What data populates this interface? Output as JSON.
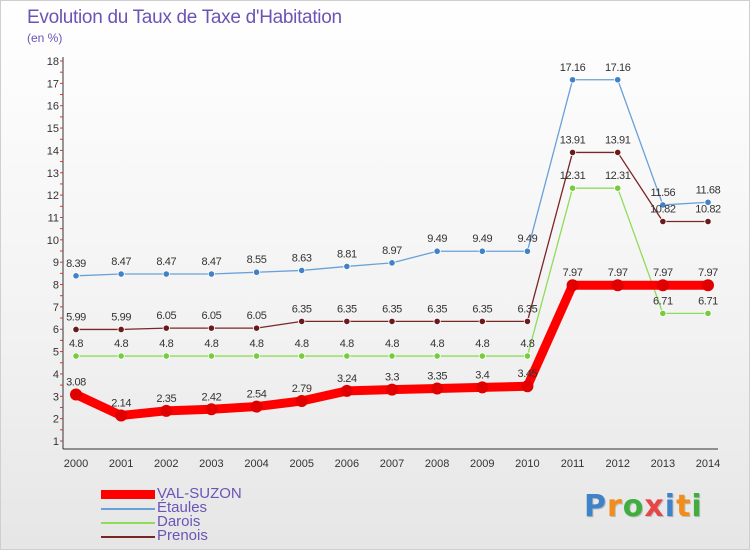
{
  "header": {
    "title": "Evolution du Taux de Taxe d'Habitation",
    "unit": "(en %)"
  },
  "chart_data": {
    "type": "line",
    "title": "Evolution du Taux de Taxe d'Habitation",
    "subtitle": "(en %)",
    "xlabel": "",
    "ylabel": "",
    "categories": [
      "2000",
      "2001",
      "2002",
      "2003",
      "2004",
      "2005",
      "2006",
      "2007",
      "2008",
      "2009",
      "2010",
      "2011",
      "2012",
      "2013",
      "2014"
    ],
    "ylim": [
      1,
      18
    ],
    "yticks": [
      1,
      2,
      3,
      4,
      5,
      6,
      7,
      8,
      9,
      10,
      11,
      12,
      13,
      14,
      15,
      16,
      17,
      18
    ],
    "grid": false,
    "legend_position": "bottom-left",
    "series": [
      {
        "name": "Étaules",
        "color": "#6aa0d8",
        "point_color": "#3f82c8",
        "values": [
          8.39,
          8.47,
          8.47,
          8.47,
          8.55,
          8.63,
          8.81,
          8.97,
          9.49,
          9.49,
          9.49,
          17.16,
          17.16,
          11.56,
          11.68
        ],
        "labels": [
          "8.39",
          "8.47",
          "8.47",
          "8.47",
          "8.55",
          "8.63",
          "8.81",
          "8.97",
          "9.49",
          "9.49",
          "9.49",
          "17.16",
          "17.16",
          "11.56",
          "11.68"
        ]
      },
      {
        "name": "Prenois",
        "color": "#7a2626",
        "point_color": "#6a1a1a",
        "values": [
          5.99,
          5.99,
          6.05,
          6.05,
          6.05,
          6.35,
          6.35,
          6.35,
          6.35,
          6.35,
          6.35,
          13.91,
          13.91,
          10.82,
          10.82
        ],
        "labels": [
          "5.99",
          "5.99",
          "6.05",
          "6.05",
          "6.05",
          "6.35",
          "6.35",
          "6.35",
          "6.35",
          "6.35",
          "6.35",
          "13.91",
          "13.91",
          "10.82",
          "10.82"
        ]
      },
      {
        "name": "Darois",
        "color": "#8fdc5a",
        "point_color": "#76cc3c",
        "values": [
          4.8,
          4.8,
          4.8,
          4.8,
          4.8,
          4.8,
          4.8,
          4.8,
          4.8,
          4.8,
          4.8,
          12.31,
          12.31,
          6.71,
          6.71
        ],
        "labels": [
          "4.8",
          "4.8",
          "4.8",
          "4.8",
          "4.8",
          "4.8",
          "4.8",
          "4.8",
          "4.8",
          "4.8",
          "4.8",
          "12.31",
          "12.31",
          "6.71",
          "6.71"
        ]
      },
      {
        "name": "VAL-SUZON",
        "color": "#ff0000",
        "point_color": "#e00000",
        "emphasis": true,
        "values": [
          3.08,
          2.14,
          2.35,
          2.42,
          2.54,
          2.79,
          3.24,
          3.3,
          3.35,
          3.4,
          3.45,
          7.97,
          7.97,
          7.97,
          7.97
        ],
        "labels": [
          "3.08",
          "2.14",
          "2.35",
          "2.42",
          "2.54",
          "2.79",
          "3.24",
          "3.3",
          "3.35",
          "3.4",
          "3.45",
          "7.97",
          "7.97",
          "7.97",
          "7.97"
        ]
      }
    ]
  },
  "legend": {
    "items": [
      {
        "label": "VAL-SUZON",
        "color": "#ff0000",
        "thick": true
      },
      {
        "label": "Étaules",
        "color": "#6aa0d8",
        "thick": false
      },
      {
        "label": "Darois",
        "color": "#8fdc5a",
        "thick": false
      },
      {
        "label": "Prenois",
        "color": "#7a2626",
        "thick": false
      }
    ],
    "text_color": "#6b54b5"
  },
  "logo": {
    "text": "Proxiti",
    "colors": [
      "#3f82c8",
      "#f28c1a",
      "#3fae3f",
      "#e64646",
      "#3f82c8",
      "#f28c1a",
      "#3fae3f"
    ]
  }
}
